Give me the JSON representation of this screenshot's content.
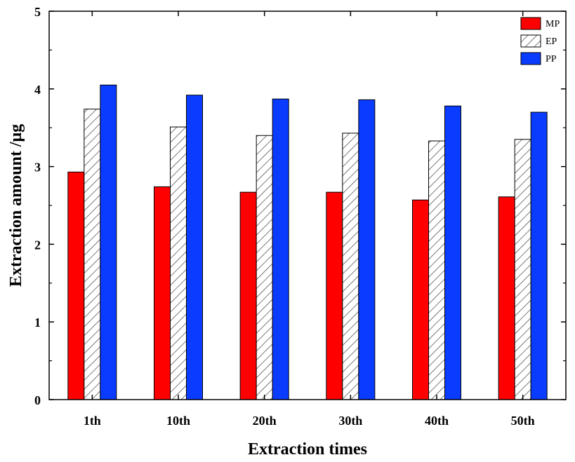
{
  "chart_data": {
    "type": "bar",
    "title": "",
    "xlabel": "Extraction times",
    "ylabel": "Extraction amount /μg",
    "ylim": [
      0,
      5
    ],
    "yticks": [
      "0",
      "1",
      "2",
      "3",
      "4",
      "5"
    ],
    "categories": [
      "1th",
      "10th",
      "20th",
      "30th",
      "40th",
      "50th"
    ],
    "series": [
      {
        "name": "MP",
        "color": "#ff0000",
        "pattern": "solid",
        "values": [
          2.93,
          2.74,
          2.67,
          2.67,
          2.57,
          2.61
        ]
      },
      {
        "name": "EP",
        "color": "#ffffff",
        "pattern": "hatch",
        "values": [
          3.74,
          3.51,
          3.4,
          3.43,
          3.33,
          3.35
        ]
      },
      {
        "name": "PP",
        "color": "#0a3cff",
        "pattern": "solid",
        "values": [
          4.05,
          3.92,
          3.87,
          3.86,
          3.78,
          3.7
        ]
      }
    ],
    "legend_position": "top-right",
    "grid": false
  }
}
